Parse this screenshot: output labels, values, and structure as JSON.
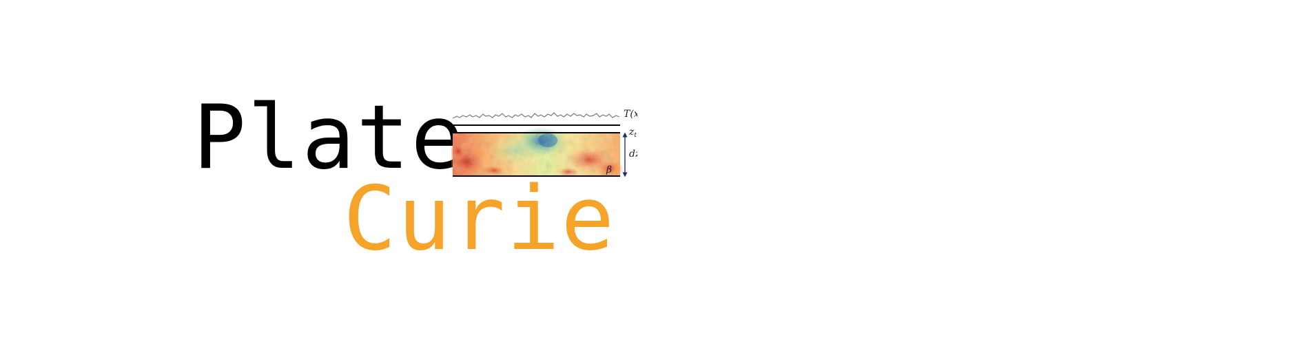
{
  "logo": {
    "word_top": "Plate",
    "word_bottom": "Curie",
    "color_top": "#000000",
    "color_bottom": "#f6a32a"
  },
  "diagram": {
    "label_topography": "T(x)",
    "label_top_depth": "z",
    "label_top_depth_sub": "t",
    "label_thickness": "dz",
    "label_beta": "β",
    "line_color": "#000000",
    "profile_color": "#777777",
    "arrow_color": "#1d2c6b",
    "field_colors": [
      "#d7301f",
      "#f46d43",
      "#fdae61",
      "#fee08b",
      "#e6f598",
      "#abdda4",
      "#66c2a5",
      "#3288bd"
    ]
  }
}
